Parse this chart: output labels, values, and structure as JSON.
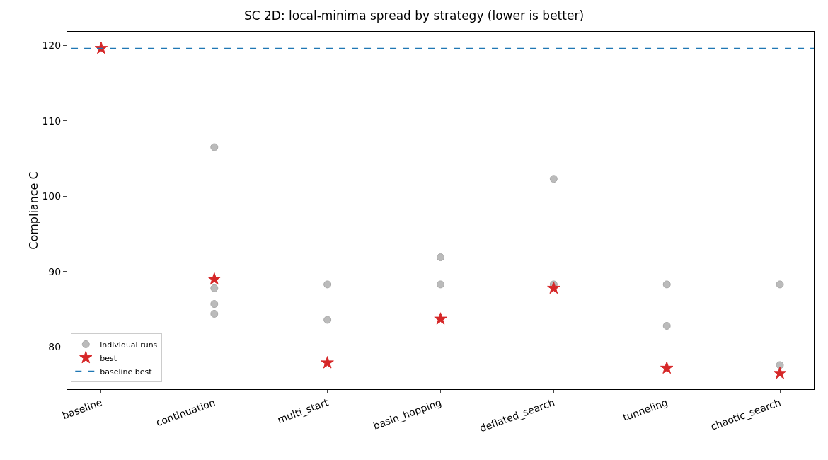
{
  "chart_data": {
    "type": "scatter",
    "title": "SC 2D: local-minima spread by strategy (lower is better)",
    "ylabel": "Compliance C",
    "categories": [
      "baseline",
      "continuation",
      "multi_start",
      "basin_hopping",
      "deflated_search",
      "tunneling",
      "chaotic_search"
    ],
    "series": [
      {
        "name": "individual runs",
        "color": "#b0b0b0",
        "marker": "circle",
        "x": [
          "continuation",
          "continuation",
          "continuation",
          "continuation",
          "multi_start",
          "multi_start",
          "basin_hopping",
          "basin_hopping",
          "deflated_search",
          "deflated_search",
          "tunneling",
          "tunneling",
          "chaotic_search",
          "chaotic_search"
        ],
        "values": [
          106.5,
          87.8,
          85.7,
          84.4,
          88.3,
          83.6,
          91.9,
          88.3,
          102.3,
          88.3,
          88.3,
          82.8,
          88.3,
          77.6
        ]
      },
      {
        "name": "best",
        "color": "#d62728",
        "marker": "star",
        "x": [
          "baseline",
          "continuation",
          "multi_start",
          "basin_hopping",
          "deflated_search",
          "tunneling",
          "chaotic_search"
        ],
        "values": [
          119.6,
          89.0,
          77.9,
          83.7,
          87.8,
          77.2,
          76.5
        ]
      }
    ],
    "ref_lines": [
      {
        "axis": "y",
        "value": 119.6,
        "label": "baseline best",
        "color": "#1f77b4",
        "line_style": "dashed"
      }
    ],
    "ylim": [
      74.4,
      121.8
    ],
    "yticks": [
      80,
      90,
      100,
      110,
      120
    ],
    "grid": false,
    "legend": "bottom left"
  }
}
